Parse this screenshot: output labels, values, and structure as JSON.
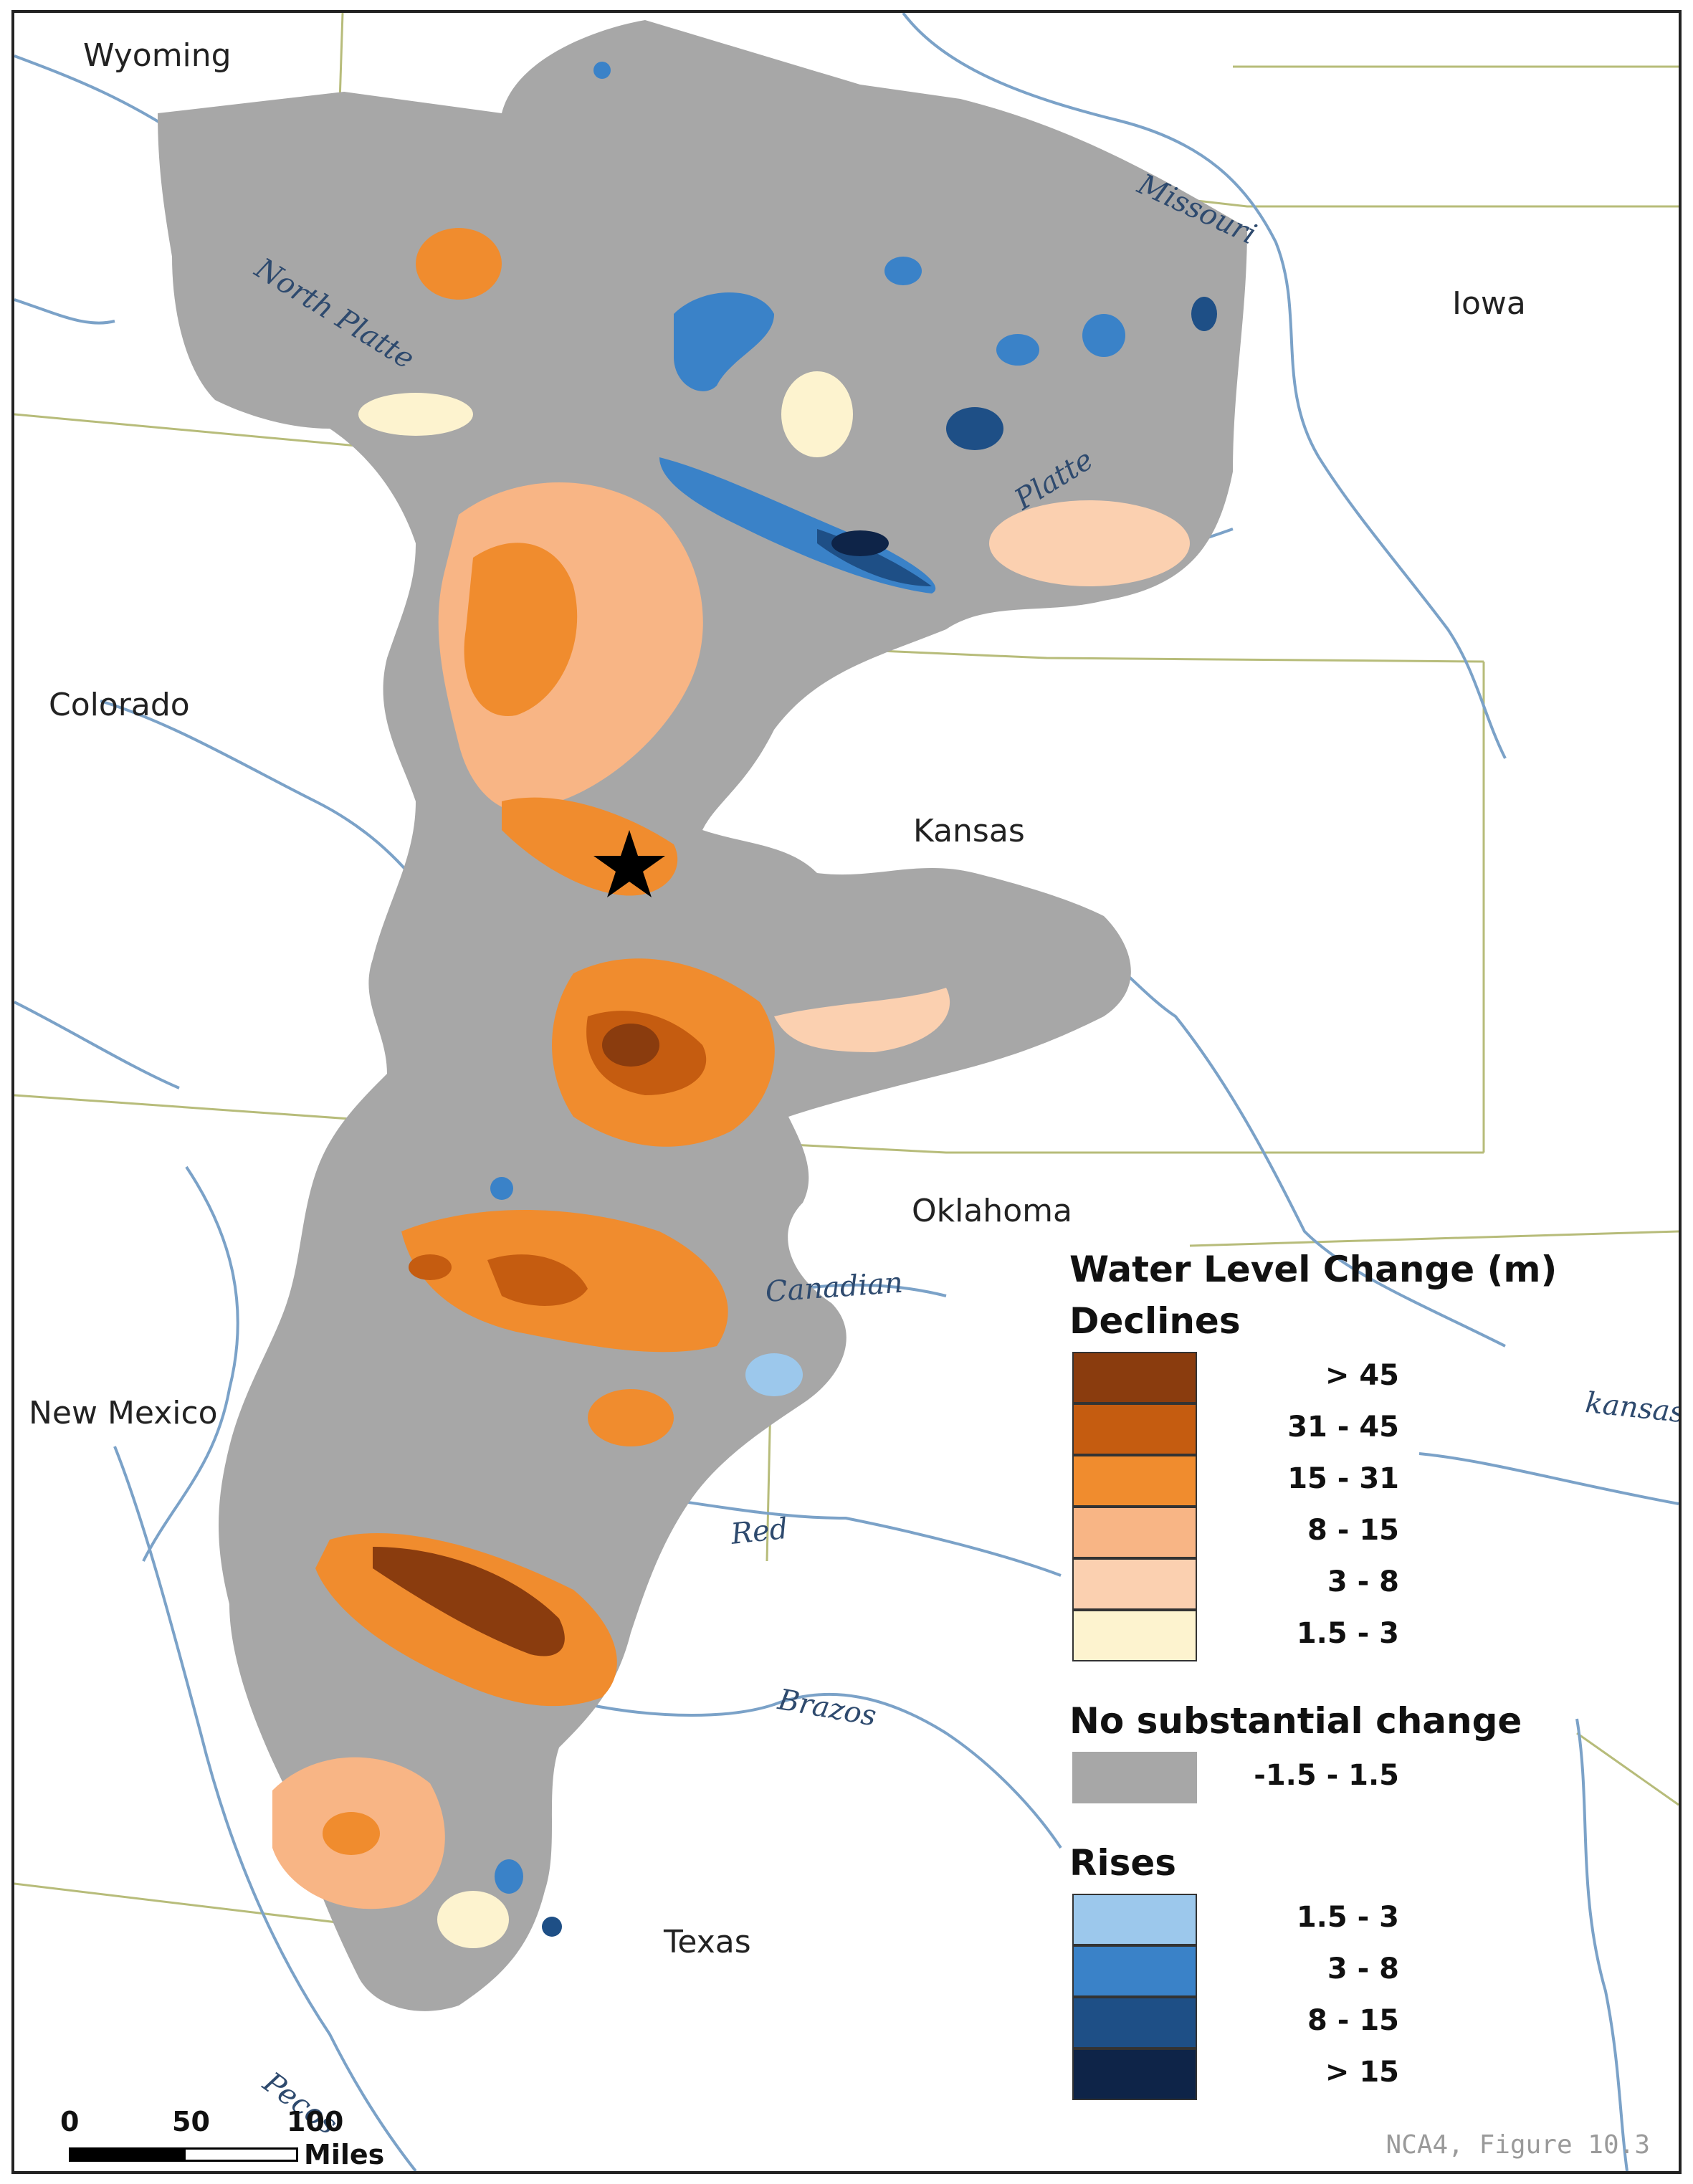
{
  "states": {
    "wyoming": "Wyoming",
    "iowa": "Iowa",
    "colorado": "Colorado",
    "kansas": "Kansas",
    "oklahoma": "Oklahoma",
    "new_mexico": "New Mexico",
    "texas": "Texas"
  },
  "rivers": {
    "north_platte": "North Platte",
    "missouri": "Missouri",
    "platte": "Platte",
    "canadian": "Canadian",
    "arkansas_partial": "kansas",
    "red": "Red",
    "brazos": "Brazos",
    "pecos": "Pecos"
  },
  "legend": {
    "title": "Water Level Change (m)",
    "declines_heading": "Declines",
    "declines": [
      {
        "label": "> 45",
        "color": "#8a3c0e"
      },
      {
        "label": "31 - 45",
        "color": "#c55c10"
      },
      {
        "label": "15 - 31",
        "color": "#f08c2e"
      },
      {
        "label": "8 - 15",
        "color": "#f8b585"
      },
      {
        "label": "3 - 8",
        "color": "#fbd0b0"
      },
      {
        "label": "1.5 - 3",
        "color": "#fdf3cf"
      }
    ],
    "no_change_heading": "No substantial change",
    "no_change": {
      "label": "-1.5 - 1.5",
      "color": "#a7a7a7"
    },
    "rises_heading": "Rises",
    "rises": [
      {
        "label": "1.5 - 3",
        "color": "#9cc8ec"
      },
      {
        "label": "3 - 8",
        "color": "#3a82c8"
      },
      {
        "label": "8 - 15",
        "color": "#1e4f86"
      },
      {
        "label": "> 15",
        "color": "#0e2448"
      }
    ]
  },
  "scale_bar": {
    "ticks": [
      "0",
      "50",
      "100"
    ],
    "unit": "Miles"
  },
  "credit": "NCA4, Figure 10.3",
  "marker": "star"
}
